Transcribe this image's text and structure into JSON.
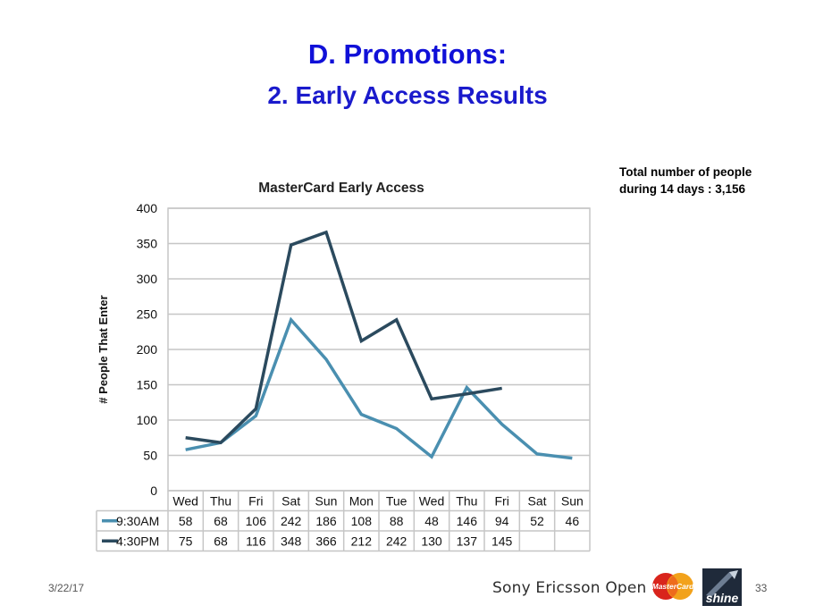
{
  "slide": {
    "title": "D. Promotions:",
    "subtitle": "2. Early Access Results",
    "note_line1": "Total number of people",
    "note_line2": "during 14 days : 3,156",
    "date": "3/22/17",
    "page": "33",
    "sponsor": "Sony Ericsson Open",
    "mastercard_text": "MasterCard",
    "shine_text": "shine"
  },
  "chart_data": {
    "type": "line",
    "title": "MasterCard Early Access",
    "ylabel": "# People That Enter",
    "xlabel": "",
    "ylim": [
      0,
      400
    ],
    "yticks": [
      0,
      50,
      100,
      150,
      200,
      250,
      300,
      350,
      400
    ],
    "grid": true,
    "legend": "table-below",
    "categories": [
      "Wed",
      "Thu",
      "Fri",
      "Sat",
      "Sun",
      "Mon",
      "Tue",
      "Wed",
      "Thu",
      "Fri",
      "Sat",
      "Sun"
    ],
    "series": [
      {
        "name": "9:30AM",
        "color": "#4a8fb0",
        "values": [
          58,
          68,
          106,
          242,
          186,
          108,
          88,
          48,
          146,
          94,
          52,
          46
        ]
      },
      {
        "name": "4:30PM",
        "color": "#2b4a5e",
        "values": [
          75,
          68,
          116,
          348,
          366,
          212,
          242,
          130,
          137,
          145,
          null,
          null
        ]
      }
    ]
  }
}
